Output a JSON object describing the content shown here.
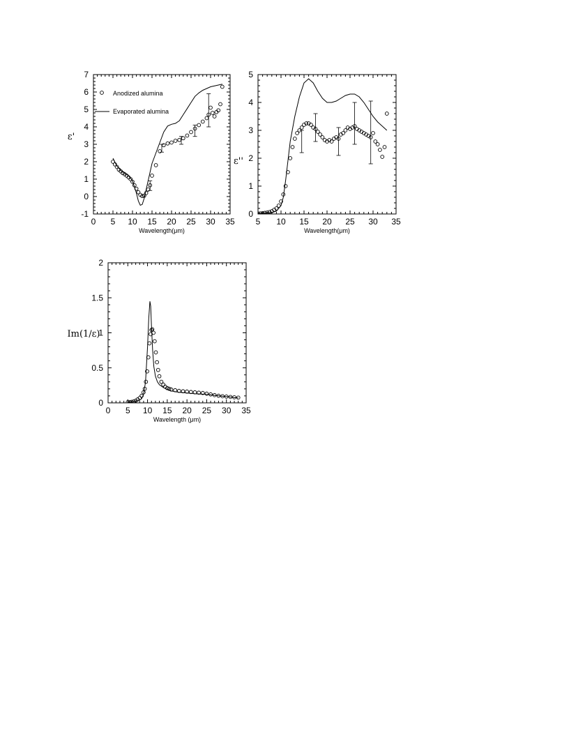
{
  "chart_data": [
    {
      "type": "line",
      "id": "eps-real",
      "ylabel": "ε'",
      "xlabel": "Wavelength(μm)",
      "xlim": [
        0,
        35
      ],
      "ylim": [
        -1,
        7
      ],
      "xticks": [
        0,
        5,
        10,
        15,
        20,
        25,
        30,
        35
      ],
      "yticks": [
        -1,
        0,
        1,
        2,
        3,
        4,
        5,
        6,
        7
      ],
      "legend": {
        "placement": "top-left",
        "entries": [
          {
            "label": "Anodized alumina",
            "marker": "circle"
          },
          {
            "label": "Evaporated alumina",
            "marker": "line"
          }
        ]
      },
      "series": [
        {
          "name": "Evaporated alumina",
          "style": "line",
          "x": [
            5,
            6,
            7,
            8,
            9,
            10,
            11,
            11.5,
            12,
            12.5,
            13,
            13.5,
            14,
            15,
            16,
            17,
            18,
            19,
            20,
            21,
            22,
            23,
            24,
            25,
            26,
            27,
            28,
            29,
            30,
            31,
            32,
            33
          ],
          "y": [
            2.2,
            1.75,
            1.5,
            1.35,
            1.2,
            0.9,
            0.2,
            -0.25,
            -0.5,
            -0.45,
            -0.1,
            0.4,
            0.9,
            1.9,
            2.5,
            3.1,
            3.7,
            4.05,
            4.15,
            4.2,
            4.35,
            4.7,
            5.05,
            5.4,
            5.75,
            5.95,
            6.1,
            6.2,
            6.3,
            6.35,
            6.4,
            6.45
          ]
        },
        {
          "name": "Anodized alumina",
          "style": "circles",
          "x": [
            5,
            5.5,
            6,
            6.5,
            7,
            7.5,
            8,
            8.5,
            9,
            9.5,
            10,
            10.5,
            11,
            11.5,
            12,
            12.5,
            13,
            13.5,
            14,
            14.5,
            15,
            16,
            17,
            18,
            19,
            20,
            21,
            22,
            23,
            24,
            25,
            26,
            27,
            28,
            29,
            29.5,
            30,
            30.5,
            31,
            31.5,
            32,
            32.5,
            33
          ],
          "y": [
            2.0,
            1.85,
            1.7,
            1.55,
            1.45,
            1.35,
            1.28,
            1.2,
            1.1,
            1.0,
            0.85,
            0.65,
            0.45,
            0.25,
            0.1,
            0.03,
            0.05,
            0.2,
            0.4,
            0.65,
            1.2,
            1.8,
            2.6,
            2.95,
            3.05,
            3.1,
            3.2,
            3.25,
            3.35,
            3.5,
            3.7,
            3.9,
            4.1,
            4.3,
            4.5,
            4.7,
            5.1,
            4.8,
            4.6,
            4.85,
            4.95,
            5.3,
            6.3
          ]
        }
      ],
      "error_bars": [
        {
          "x": 14.5,
          "low": 0.35,
          "high": 0.9
        },
        {
          "x": 17.5,
          "low": 2.55,
          "high": 3.0
        },
        {
          "x": 22.5,
          "low": 3.0,
          "high": 3.45
        },
        {
          "x": 26,
          "low": 3.45,
          "high": 4.1
        },
        {
          "x": 29.5,
          "low": 4.0,
          "high": 5.9
        }
      ]
    },
    {
      "type": "line",
      "id": "eps-imag",
      "ylabel": "ε''",
      "xlabel": "Wavelength(μm)",
      "xlim": [
        5,
        35
      ],
      "ylim": [
        0,
        5
      ],
      "xticks": [
        5,
        10,
        15,
        20,
        25,
        30,
        35
      ],
      "yticks": [
        0,
        1,
        2,
        3,
        4,
        5
      ],
      "series": [
        {
          "name": "Evaporated alumina",
          "style": "line",
          "x": [
            5,
            6,
            7,
            8,
            9,
            10,
            10.5,
            11,
            11.5,
            12,
            13,
            14,
            15,
            16,
            17,
            18,
            19,
            20,
            21,
            22,
            23,
            24,
            25,
            26,
            27,
            28,
            29,
            30,
            31,
            32,
            33
          ],
          "y": [
            0.02,
            0.02,
            0.03,
            0.05,
            0.1,
            0.3,
            0.6,
            1.2,
            1.9,
            2.6,
            3.5,
            4.2,
            4.7,
            4.85,
            4.7,
            4.4,
            4.15,
            4.0,
            4.0,
            4.05,
            4.15,
            4.25,
            4.3,
            4.3,
            4.2,
            4.0,
            3.75,
            3.5,
            3.3,
            3.15,
            3.0
          ]
        },
        {
          "name": "Anodized alumina",
          "style": "circles",
          "x": [
            5,
            5.5,
            6,
            6.5,
            7,
            7.5,
            8,
            8.5,
            9,
            9.5,
            10,
            10.5,
            11,
            11.5,
            12,
            12.5,
            13,
            13.5,
            14,
            14.5,
            15,
            15.5,
            16,
            16.5,
            17,
            17.5,
            18,
            18.5,
            19,
            19.5,
            20,
            20.5,
            21,
            21.5,
            22,
            22.5,
            23,
            23.5,
            24,
            24.5,
            25,
            25.5,
            26,
            26.5,
            27,
            27.5,
            28,
            28.5,
            29,
            29.5,
            30,
            30.5,
            31,
            31.5,
            32,
            32.5,
            33
          ],
          "y": [
            0.02,
            0.02,
            0.03,
            0.04,
            0.05,
            0.07,
            0.1,
            0.15,
            0.2,
            0.3,
            0.45,
            0.7,
            1.0,
            1.5,
            2.0,
            2.4,
            2.7,
            2.9,
            3.0,
            3.1,
            3.2,
            3.25,
            3.25,
            3.2,
            3.1,
            3.05,
            2.95,
            2.85,
            2.75,
            2.65,
            2.6,
            2.65,
            2.6,
            2.7,
            2.75,
            2.7,
            2.85,
            2.9,
            3.0,
            3.1,
            3.05,
            3.1,
            3.15,
            3.05,
            3.0,
            2.95,
            2.9,
            2.85,
            2.8,
            2.75,
            2.9,
            2.6,
            2.5,
            2.3,
            2.05,
            2.4,
            3.6
          ]
        }
      ],
      "error_bars": [
        {
          "x": 14.5,
          "low": 2.2,
          "high": 3.0
        },
        {
          "x": 17.5,
          "low": 2.6,
          "high": 3.6
        },
        {
          "x": 22.5,
          "low": 2.1,
          "high": 3.1
        },
        {
          "x": 26,
          "low": 2.5,
          "high": 4.0
        },
        {
          "x": 29.5,
          "low": 1.8,
          "high": 4.05
        }
      ]
    },
    {
      "type": "line",
      "id": "loss-function",
      "ylabel": "Im(1/ε)",
      "xlabel": "Wavelength (μm)",
      "xlim": [
        0,
        35
      ],
      "ylim": [
        0,
        2
      ],
      "xticks": [
        0,
        5,
        10,
        15,
        20,
        25,
        30,
        35
      ],
      "yticks": [
        0,
        0.5,
        1,
        1.5,
        2
      ],
      "ytick_labels": [
        "0",
        "0.5",
        "1",
        "1.5",
        "2"
      ],
      "series": [
        {
          "name": "Evaporated alumina",
          "style": "line",
          "x": [
            5,
            6,
            7,
            8,
            8.5,
            9,
            9.5,
            10,
            10.3,
            10.6,
            10.8,
            11,
            11.3,
            11.6,
            12,
            12.5,
            13,
            14,
            15,
            16,
            18,
            20,
            22,
            25,
            28,
            30,
            33
          ],
          "y": [
            0.01,
            0.01,
            0.02,
            0.04,
            0.06,
            0.12,
            0.3,
            0.8,
            1.2,
            1.45,
            1.38,
            1.1,
            0.75,
            0.52,
            0.38,
            0.3,
            0.26,
            0.22,
            0.19,
            0.17,
            0.15,
            0.14,
            0.13,
            0.12,
            0.1,
            0.09,
            0.07
          ]
        },
        {
          "name": "Anodized alumina",
          "style": "circles",
          "x": [
            5,
            5.5,
            6,
            6.5,
            7,
            7.5,
            8,
            8.5,
            9,
            9.3,
            9.6,
            9.9,
            10.2,
            10.5,
            10.8,
            11,
            11.2,
            11.5,
            11.8,
            12.1,
            12.4,
            12.7,
            13,
            13.5,
            14,
            14.5,
            15,
            15.5,
            16,
            17,
            18,
            19,
            20,
            21,
            22,
            23,
            24,
            25,
            26,
            27,
            28,
            29,
            30,
            31,
            32,
            33
          ],
          "y": [
            0.01,
            0.01,
            0.015,
            0.02,
            0.03,
            0.05,
            0.07,
            0.1,
            0.15,
            0.2,
            0.3,
            0.45,
            0.65,
            0.85,
            0.98,
            1.04,
            1.05,
            1.0,
            0.88,
            0.72,
            0.58,
            0.47,
            0.38,
            0.3,
            0.26,
            0.23,
            0.21,
            0.2,
            0.19,
            0.18,
            0.17,
            0.165,
            0.16,
            0.155,
            0.15,
            0.145,
            0.14,
            0.13,
            0.12,
            0.11,
            0.1,
            0.095,
            0.09,
            0.085,
            0.08,
            0.075
          ]
        }
      ]
    }
  ]
}
